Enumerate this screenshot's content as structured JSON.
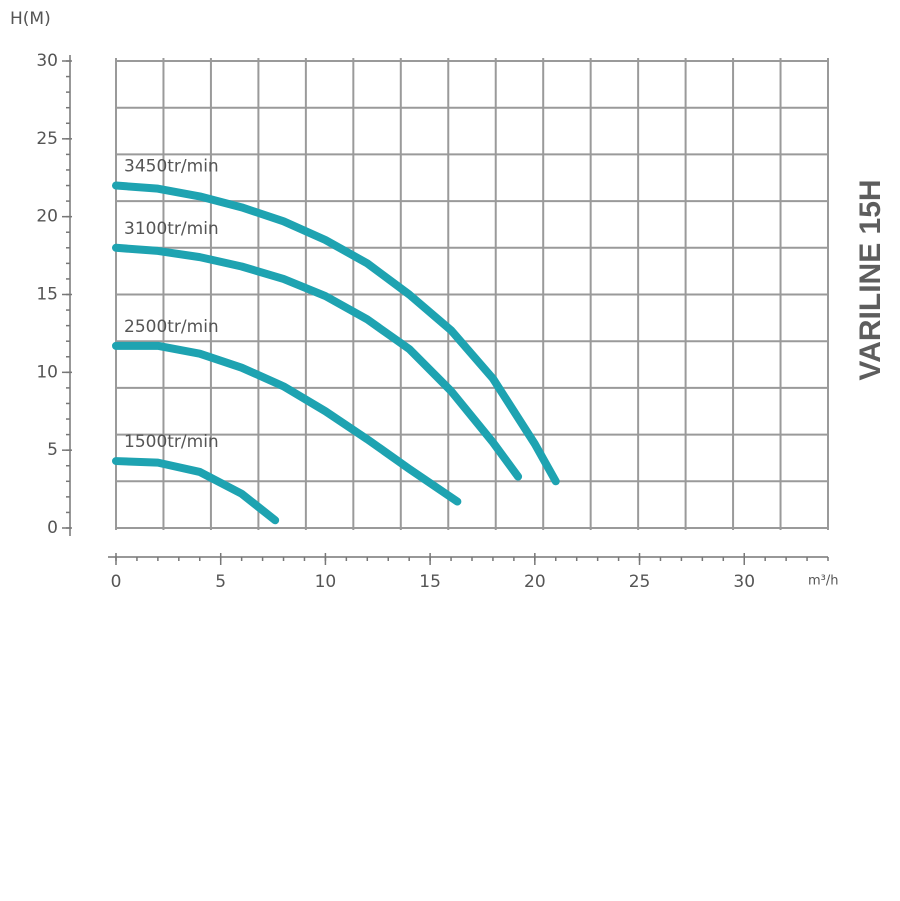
{
  "chart_data": {
    "type": "line",
    "title": "VARILINE 15H",
    "y_label": "H(M)",
    "x_label": "m³/h",
    "xlim": [
      0,
      34
    ],
    "ylim": [
      0,
      30
    ],
    "xticks": [
      0,
      5,
      10,
      15,
      20,
      25,
      30
    ],
    "yticks": [
      0,
      5,
      10,
      15,
      20,
      25,
      30
    ],
    "grid": true,
    "series": [
      {
        "name": "3450tr/min",
        "color": "#1ea3b1",
        "x": [
          0,
          2,
          4,
          6,
          8,
          10,
          12,
          14,
          16,
          18,
          20,
          21
        ],
        "values": [
          22,
          21.8,
          21.3,
          20.6,
          19.7,
          18.5,
          17,
          15,
          12.7,
          9.6,
          5.4,
          3.0
        ]
      },
      {
        "name": "3100tr/min",
        "color": "#1ea3b1",
        "x": [
          0,
          2,
          4,
          6,
          8,
          10,
          12,
          14,
          16,
          18,
          19.2
        ],
        "values": [
          18,
          17.8,
          17.4,
          16.8,
          16,
          14.9,
          13.4,
          11.5,
          8.8,
          5.5,
          3.3
        ]
      },
      {
        "name": "2500tr/min",
        "color": "#1ea3b1",
        "x": [
          0,
          2,
          4,
          6,
          8,
          10,
          12,
          14,
          16.3
        ],
        "values": [
          11.7,
          11.7,
          11.2,
          10.3,
          9.1,
          7.5,
          5.7,
          3.8,
          1.7
        ]
      },
      {
        "name": "1500tr/min",
        "color": "#1ea3b1",
        "x": [
          0,
          2,
          4,
          6,
          7.6
        ],
        "values": [
          4.3,
          4.2,
          3.6,
          2.2,
          0.5
        ]
      }
    ]
  }
}
